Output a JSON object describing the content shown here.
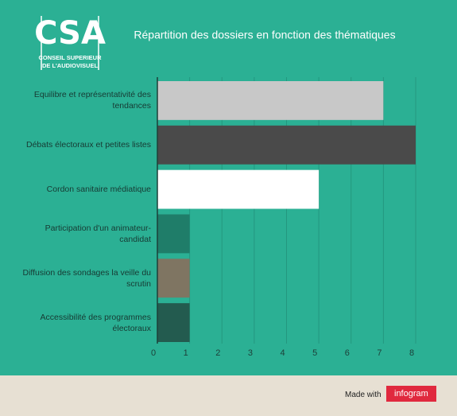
{
  "chart_data": {
    "type": "bar",
    "orientation": "horizontal",
    "title": "Répartition des dossiers en fonction des thématiques",
    "categories": [
      "Equilibre et représentativité des tendances",
      "Débats électoraux et petites listes",
      "Cordon sanitaire médiatique",
      "Participation d'un animateur-candidat",
      "Diffusion des sondages la veille du scrutin",
      "Accessibilité des programmes électoraux"
    ],
    "values": [
      7,
      8,
      5,
      1,
      1,
      1
    ],
    "colors": [
      "#c8c8c8",
      "#4a4a4a",
      "#ffffff",
      "#1f7d69",
      "#7f7562",
      "#235b4f"
    ],
    "xlim": [
      0,
      8
    ],
    "xticks": [
      0,
      1,
      2,
      3,
      4,
      5,
      6,
      7,
      8
    ],
    "grid": true
  },
  "logo": {
    "title": "CSA",
    "line1": "CONSEIL SUPERIEUR",
    "line2": "DE L'AUDIOVISUEL"
  },
  "footer": {
    "made_with": "Made with",
    "brand": "infogram"
  }
}
